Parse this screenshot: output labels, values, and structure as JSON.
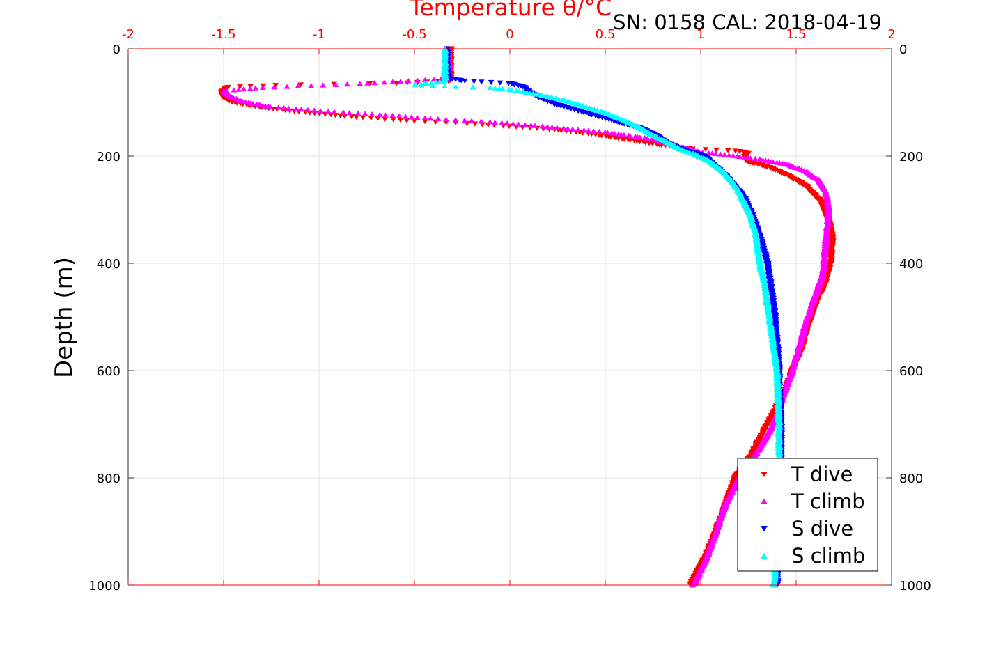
{
  "header": {
    "title": "Temperature θ/°C",
    "subtitle": "SN: 0158  CAL: 2018-04-19"
  },
  "chart_data": {
    "type": "scatter",
    "title": "Temperature θ/°C",
    "subtitle": "SN: 0158  CAL: 2018-04-19",
    "xlabel": "Temperature θ/°C",
    "ylabel": "Depth (m)",
    "xlim": [
      -2,
      2
    ],
    "ylim": [
      0,
      1000
    ],
    "y_reversed": true,
    "x_ticks": [
      -2,
      -1.5,
      -1,
      -0.5,
      0,
      0.5,
      1,
      1.5,
      2
    ],
    "x_tick_labels": [
      "-2",
      "-1.5",
      "-1",
      "-0.5",
      "0",
      "0.5",
      "1",
      "1.5",
      "2"
    ],
    "y_ticks": [
      0,
      200,
      400,
      600,
      800,
      1000
    ],
    "y_tick_labels": [
      "0",
      "200",
      "400",
      "600",
      "800",
      "1000"
    ],
    "x_axis_position": "top",
    "grid": true,
    "legend_position": "bottom-right",
    "series": [
      {
        "name": "T dive",
        "marker": "triangle-down",
        "color": "#ff0000",
        "profile": [
          [
            -0.31,
            0
          ],
          [
            -0.31,
            40
          ],
          [
            -0.31,
            60
          ],
          [
            -0.6,
            65
          ],
          [
            -1.2,
            68
          ],
          [
            -1.48,
            72
          ],
          [
            -1.51,
            80
          ],
          [
            -1.5,
            90
          ],
          [
            -1.45,
            100
          ],
          [
            -1.3,
            110
          ],
          [
            -1.1,
            118
          ],
          [
            -0.8,
            128
          ],
          [
            -0.5,
            135
          ],
          [
            -0.2,
            140
          ],
          [
            0.2,
            150
          ],
          [
            0.45,
            160
          ],
          [
            0.65,
            172
          ],
          [
            0.8,
            180
          ],
          [
            0.95,
            187
          ],
          [
            1.15,
            190
          ],
          [
            1.22,
            192
          ],
          [
            1.25,
            196
          ],
          [
            1.23,
            200
          ],
          [
            1.24,
            210
          ],
          [
            1.35,
            220
          ],
          [
            1.45,
            235
          ],
          [
            1.55,
            255
          ],
          [
            1.63,
            285
          ],
          [
            1.68,
            330
          ],
          [
            1.69,
            360
          ],
          [
            1.68,
            400
          ],
          [
            1.65,
            440
          ],
          [
            1.6,
            480
          ],
          [
            1.56,
            520
          ],
          [
            1.53,
            560
          ],
          [
            1.48,
            600
          ],
          [
            1.44,
            640
          ],
          [
            1.38,
            680
          ],
          [
            1.32,
            720
          ],
          [
            1.26,
            760
          ],
          [
            1.18,
            800
          ],
          [
            1.13,
            850
          ],
          [
            1.08,
            900
          ],
          [
            1.02,
            950
          ],
          [
            0.96,
            990
          ],
          [
            0.95,
            1000
          ]
        ]
      },
      {
        "name": "T climb",
        "marker": "triangle-up",
        "color": "#ff00ff",
        "profile": [
          [
            -0.32,
            0
          ],
          [
            -0.32,
            40
          ],
          [
            -0.32,
            55
          ],
          [
            -0.8,
            65
          ],
          [
            -1.3,
            72
          ],
          [
            -1.5,
            78
          ],
          [
            -1.47,
            88
          ],
          [
            -1.4,
            98
          ],
          [
            -1.25,
            108
          ],
          [
            -1.0,
            115
          ],
          [
            -0.7,
            122
          ],
          [
            -0.4,
            130
          ],
          [
            -0.1,
            136
          ],
          [
            0.2,
            145
          ],
          [
            0.5,
            155
          ],
          [
            0.75,
            168
          ],
          [
            0.85,
            178
          ],
          [
            0.92,
            185
          ],
          [
            1.0,
            192
          ],
          [
            1.15,
            198
          ],
          [
            1.3,
            205
          ],
          [
            1.45,
            215
          ],
          [
            1.55,
            228
          ],
          [
            1.62,
            245
          ],
          [
            1.66,
            270
          ],
          [
            1.67,
            300
          ],
          [
            1.66,
            340
          ],
          [
            1.65,
            380
          ],
          [
            1.64,
            420
          ],
          [
            1.6,
            460
          ],
          [
            1.56,
            500
          ],
          [
            1.52,
            550
          ],
          [
            1.48,
            600
          ],
          [
            1.43,
            650
          ],
          [
            1.38,
            700
          ],
          [
            1.3,
            750
          ],
          [
            1.2,
            800
          ],
          [
            1.13,
            850
          ],
          [
            1.08,
            900
          ],
          [
            1.03,
            950
          ],
          [
            0.97,
            995
          ],
          [
            0.96,
            1000
          ]
        ]
      },
      {
        "name": "S dive",
        "marker": "triangle-down",
        "color": "#0000ff",
        "profile": [
          [
            -0.33,
            0
          ],
          [
            -0.33,
            40
          ],
          [
            -0.32,
            55
          ],
          [
            -0.25,
            60
          ],
          [
            0.0,
            65
          ],
          [
            0.08,
            72
          ],
          [
            0.1,
            80
          ],
          [
            0.15,
            90
          ],
          [
            0.25,
            105
          ],
          [
            0.4,
            120
          ],
          [
            0.55,
            135
          ],
          [
            0.7,
            150
          ],
          [
            0.78,
            165
          ],
          [
            0.82,
            175
          ],
          [
            0.88,
            185
          ],
          [
            0.95,
            193
          ],
          [
            1.02,
            200
          ],
          [
            1.08,
            220
          ],
          [
            1.14,
            240
          ],
          [
            1.19,
            260
          ],
          [
            1.23,
            280
          ],
          [
            1.27,
            310
          ],
          [
            1.31,
            350
          ],
          [
            1.35,
            400
          ],
          [
            1.37,
            450
          ],
          [
            1.39,
            500
          ],
          [
            1.4,
            550
          ],
          [
            1.41,
            600
          ],
          [
            1.42,
            700
          ],
          [
            1.42,
            800
          ],
          [
            1.41,
            900
          ],
          [
            1.4,
            980
          ],
          [
            1.4,
            1000
          ]
        ]
      },
      {
        "name": "S climb",
        "marker": "triangle-up",
        "color": "#00ffff",
        "profile": [
          [
            -0.34,
            0
          ],
          [
            -0.34,
            40
          ],
          [
            -0.34,
            60
          ],
          [
            -0.5,
            67
          ],
          [
            -0.3,
            70
          ],
          [
            -0.1,
            72
          ],
          [
            0.05,
            78
          ],
          [
            0.15,
            85
          ],
          [
            0.28,
            95
          ],
          [
            0.4,
            108
          ],
          [
            0.52,
            122
          ],
          [
            0.63,
            138
          ],
          [
            0.72,
            155
          ],
          [
            0.8,
            170
          ],
          [
            0.88,
            185
          ],
          [
            0.96,
            195
          ],
          [
            1.05,
            210
          ],
          [
            1.12,
            230
          ],
          [
            1.18,
            255
          ],
          [
            1.22,
            280
          ],
          [
            1.26,
            310
          ],
          [
            1.29,
            350
          ],
          [
            1.31,
            400
          ],
          [
            1.34,
            450
          ],
          [
            1.36,
            500
          ],
          [
            1.38,
            550
          ],
          [
            1.4,
            600
          ],
          [
            1.41,
            700
          ],
          [
            1.41,
            800
          ],
          [
            1.4,
            900
          ],
          [
            1.39,
            980
          ],
          [
            1.38,
            1000
          ]
        ]
      }
    ]
  }
}
